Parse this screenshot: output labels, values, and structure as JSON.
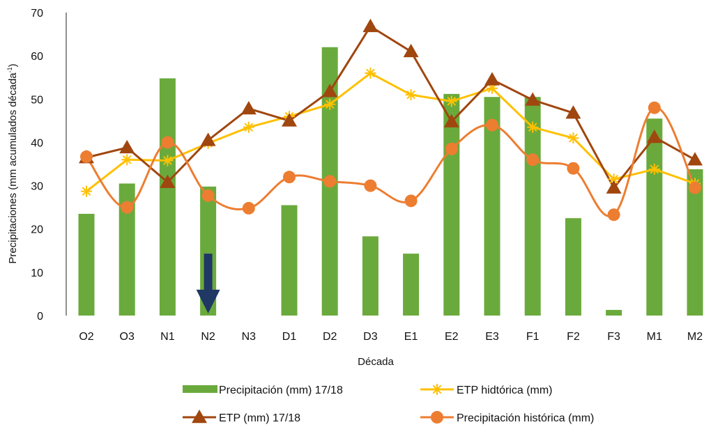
{
  "chart_data": {
    "type": "bar",
    "title": "",
    "xlabel": "Década",
    "ylabel": "Precipitaciones (mm acumulados década",
    "ylabel_sup": "-1",
    "ylabel_close": ")",
    "ylim": [
      0,
      70
    ],
    "yticks": [
      0,
      10,
      20,
      30,
      40,
      50,
      60,
      70
    ],
    "grid": false,
    "legend_position": "bottom",
    "categories": [
      "O2",
      "O3",
      "N1",
      "N2",
      "N3",
      "D1",
      "D2",
      "D3",
      "E1",
      "E2",
      "E3",
      "F1",
      "F2",
      "F3",
      "M1",
      "M2"
    ],
    "series": [
      {
        "name": "Precipitación (mm) 17/18",
        "type": "bar",
        "color": "#6aaa3c",
        "values": [
          23.5,
          30.5,
          54.8,
          29.8,
          0,
          25.5,
          62,
          18.3,
          14.3,
          51.2,
          50.5,
          50.5,
          22.5,
          1.3,
          45.5,
          33.8
        ]
      },
      {
        "name": "ETP hidtórica (mm)",
        "type": "line",
        "marker": "asterisk",
        "color": "#ffc000",
        "values": [
          28.7,
          36,
          35.8,
          39.8,
          43.5,
          46,
          48.8,
          56,
          51,
          49.5,
          52.5,
          43.5,
          41,
          31.5,
          33.8,
          30.5
        ]
      },
      {
        "name": "ETP (mm) 17/18",
        "type": "line",
        "marker": "triangle",
        "color": "#a0460f",
        "values": [
          36.5,
          38.8,
          30.8,
          40.5,
          47.8,
          45,
          51.8,
          66.8,
          61,
          44.8,
          54.5,
          49.8,
          46.8,
          29.5,
          41.2,
          36
        ]
      },
      {
        "name": "Precipitación histórica (mm)",
        "type": "smooth-line",
        "marker": "circle",
        "color": "#ed7d31",
        "values": [
          36.7,
          25,
          40,
          27.7,
          24.8,
          32,
          31,
          30,
          26.5,
          38.5,
          44,
          36,
          34,
          23.3,
          48,
          29.5
        ]
      }
    ],
    "annotation": {
      "type": "arrow-down",
      "category": "N2",
      "from_value": 14.3,
      "to_value": 0.5,
      "color": "#1f3864"
    }
  }
}
